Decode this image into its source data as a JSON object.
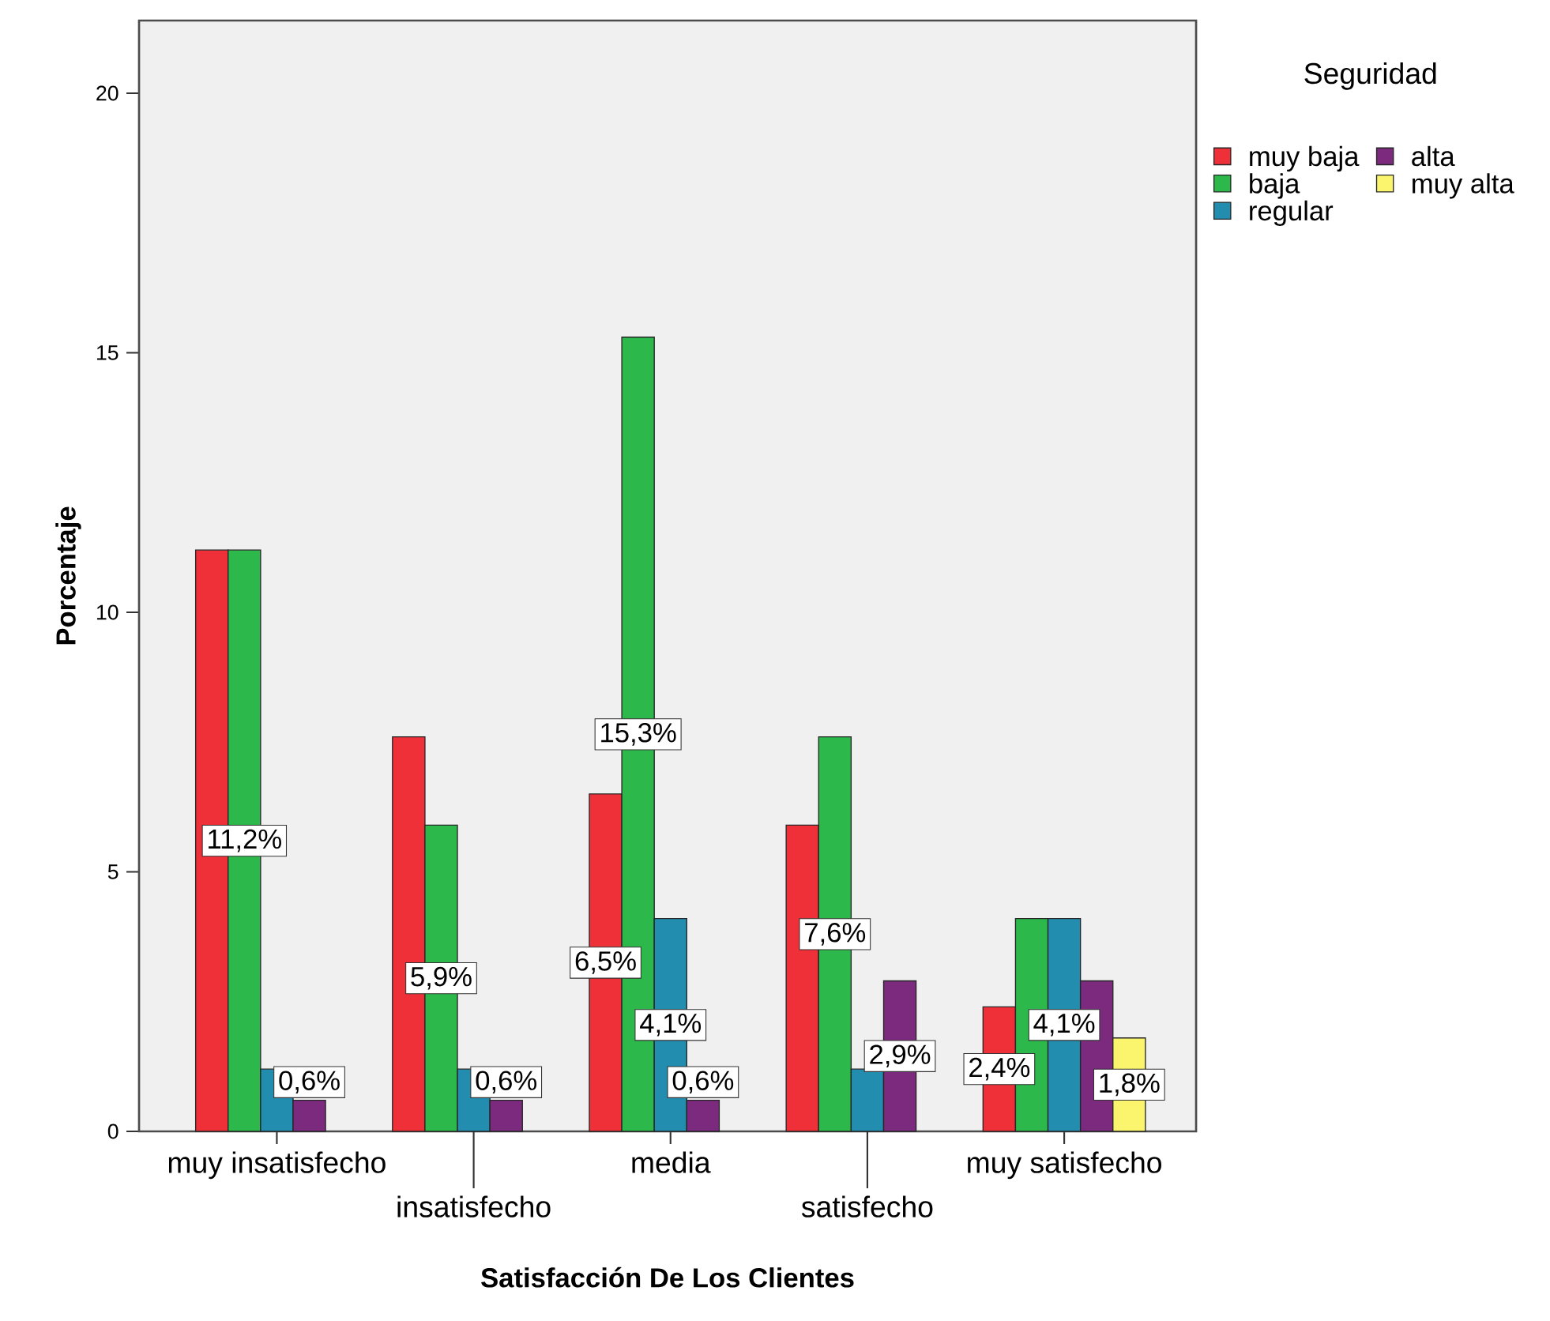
{
  "chart_data": {
    "type": "bar",
    "xlabel": "Satisfacción De Los Clientes",
    "ylabel": "Porcentaje",
    "legend_title": "Seguridad",
    "legend": "right",
    "categories": [
      "muy insatisfecho",
      "insatisfecho",
      "media",
      "satisfecho",
      "muy satisfecho"
    ],
    "ylim": [
      0,
      21.4
    ],
    "yticks": [
      0,
      5,
      10,
      15,
      20
    ],
    "series": [
      {
        "name": "muy baja",
        "color": "#ef3038",
        "values": [
          11.2,
          7.6,
          6.5,
          5.9,
          2.4
        ],
        "value_labels": [
          null,
          null,
          "6,5%",
          null,
          "2,4%"
        ]
      },
      {
        "name": "baja",
        "color": "#2db84b",
        "values": [
          11.2,
          5.9,
          15.3,
          7.6,
          4.1
        ],
        "value_labels": [
          "11,2%",
          "5,9%",
          "15,3%",
          "7,6%",
          null
        ]
      },
      {
        "name": "regular",
        "color": "#238db0",
        "values": [
          1.2,
          1.2,
          4.1,
          1.2,
          4.1
        ],
        "value_labels": [
          null,
          null,
          "4,1%",
          null,
          "4,1%"
        ]
      },
      {
        "name": "alta",
        "color": "#7b2a7e",
        "values": [
          0.6,
          0.6,
          0.6,
          2.9,
          2.9
        ],
        "value_labels": [
          "0,6%",
          "0,6%",
          "0,6%",
          "2,9%",
          null
        ]
      },
      {
        "name": "muy alta",
        "color": "#fbf56e",
        "values": [
          null,
          null,
          null,
          null,
          1.8
        ],
        "value_labels": [
          null,
          null,
          null,
          null,
          "1,8%"
        ]
      }
    ]
  }
}
